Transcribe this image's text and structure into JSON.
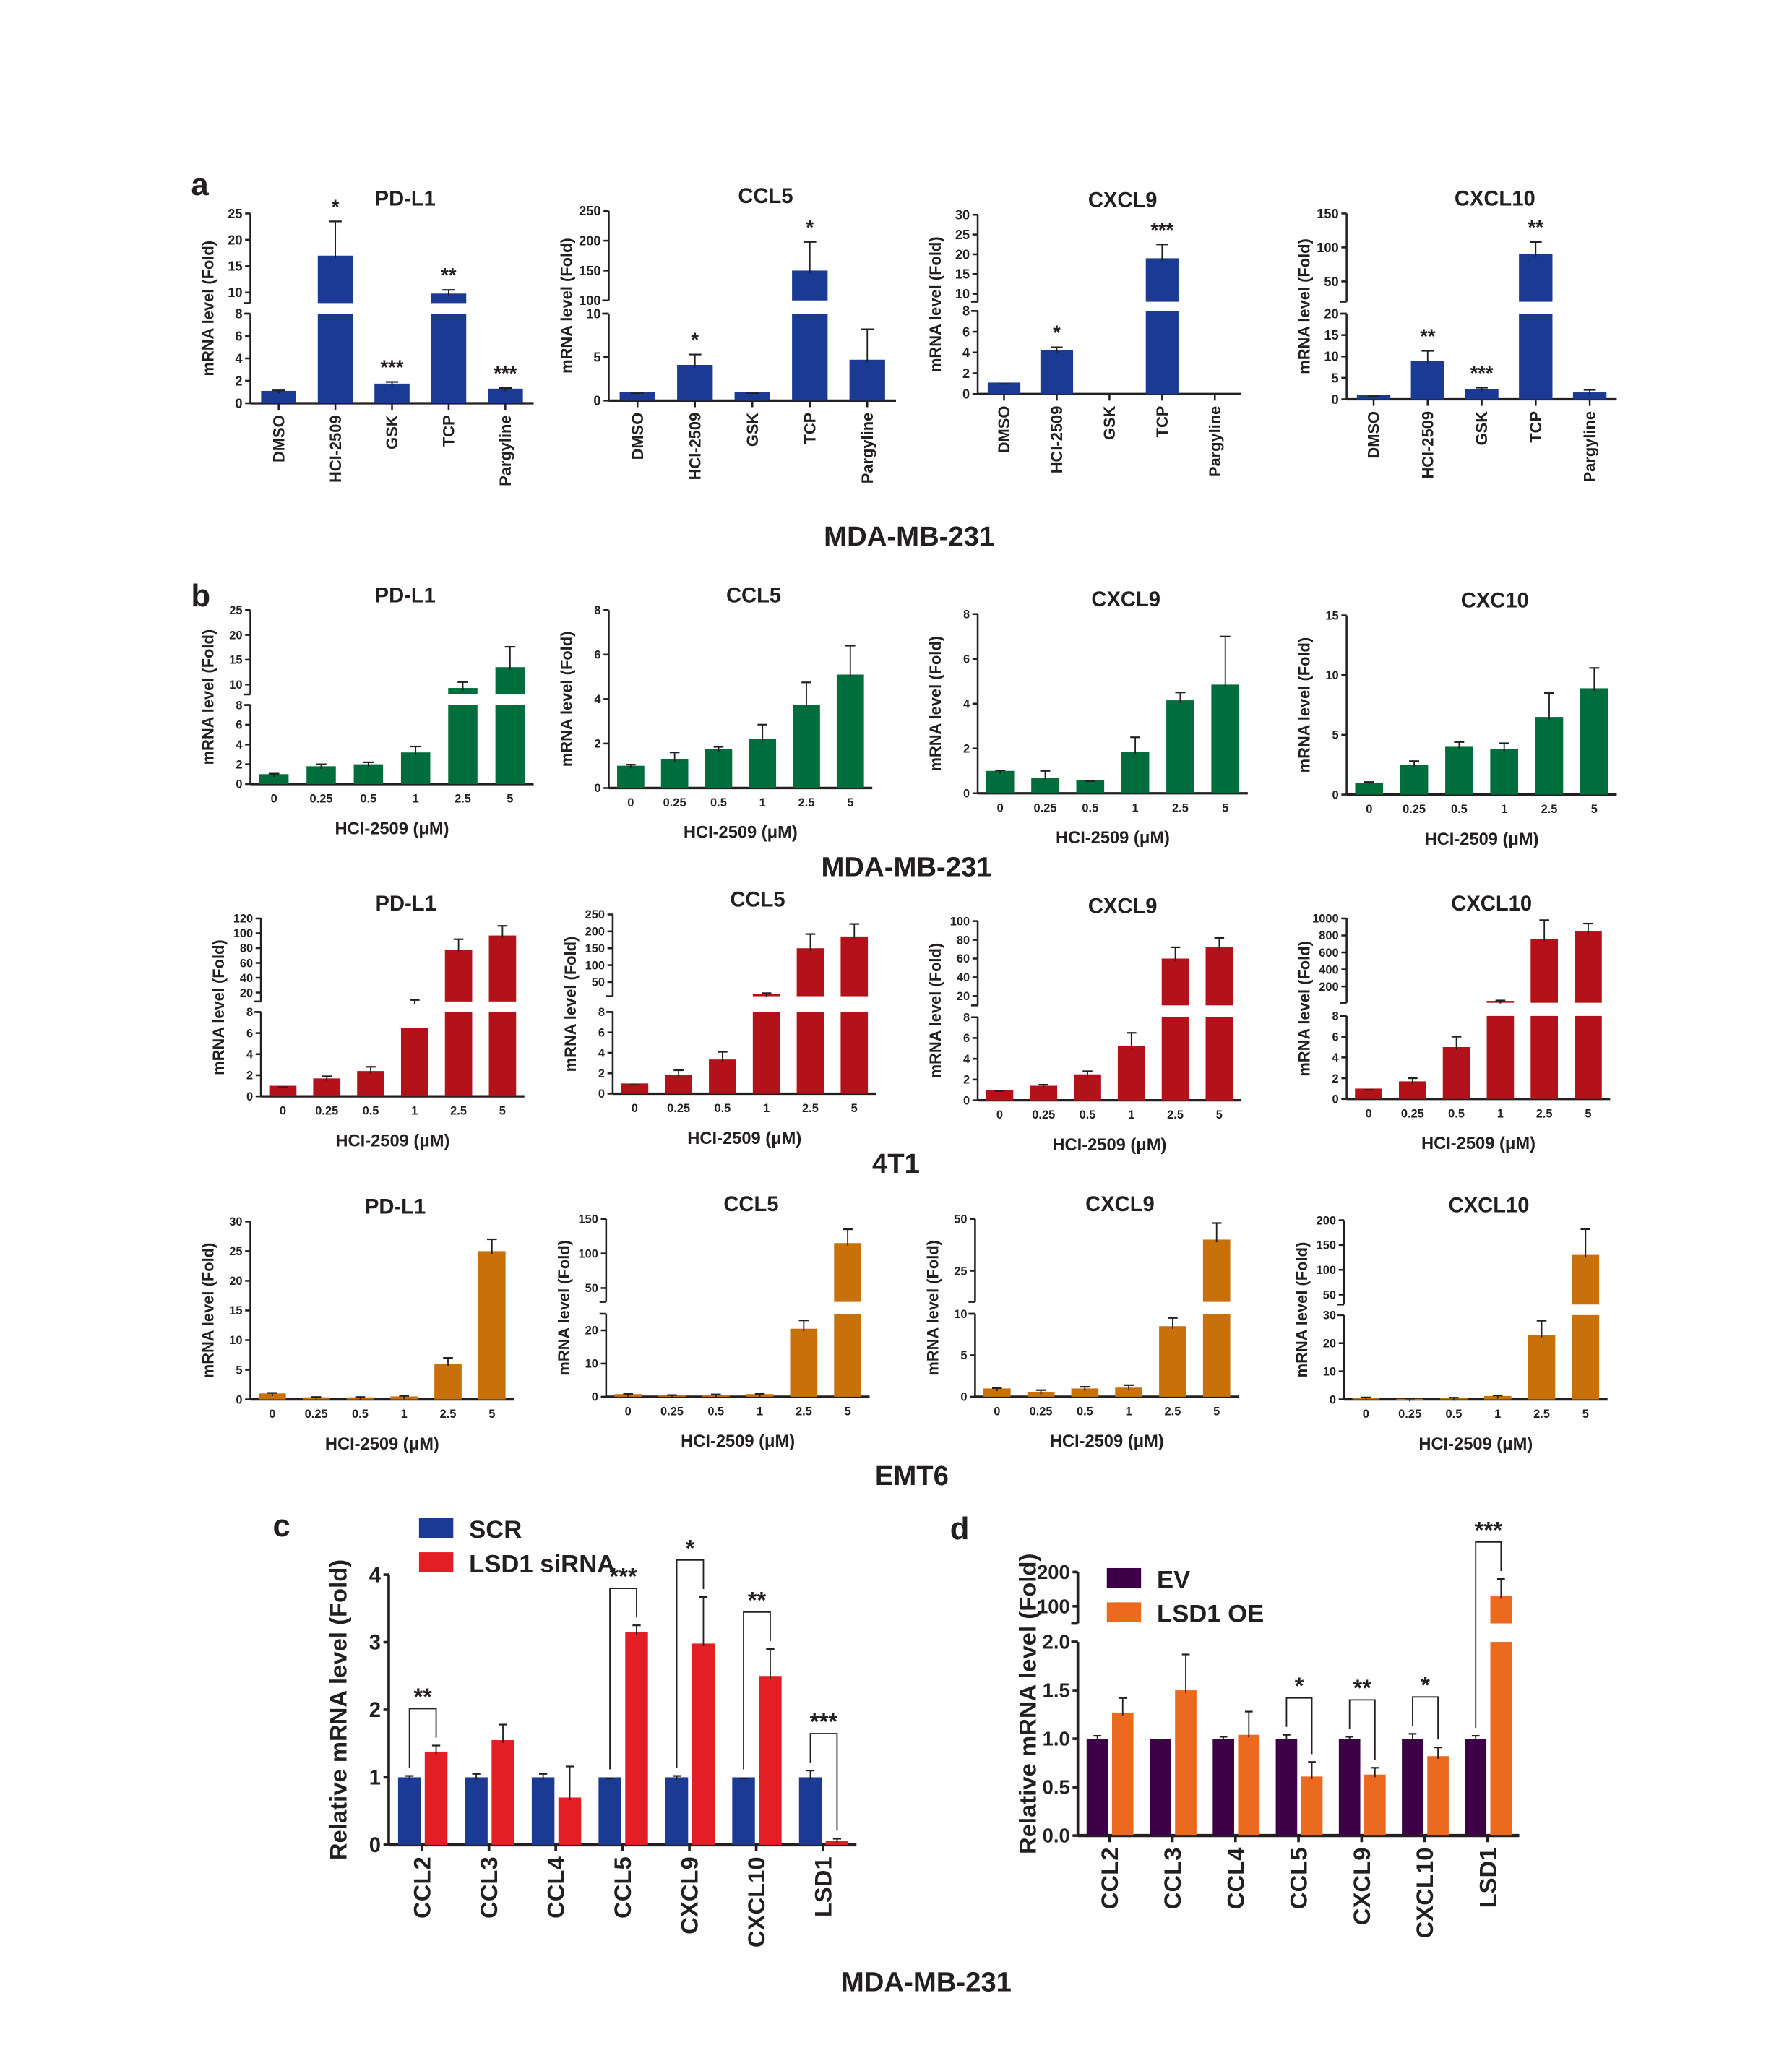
{
  "panels": {
    "a": "a",
    "b": "b",
    "c": "c",
    "d": "d"
  },
  "cell_lines": {
    "a": "MDA-MB-231",
    "b1": "MDA-MB-231",
    "b2": "4T1",
    "b3": "EMT6",
    "cd": "MDA-MB-231"
  },
  "colors": {
    "blue": "#1b3a93",
    "green": "#006e3c",
    "red": "#b3121b",
    "orange": "#c8700a",
    "scr": "#1b3a93",
    "sirna": "#e31e24",
    "ev": "#3d0047",
    "oe": "#ec6a1f"
  },
  "chart_data": [
    {
      "id": "a-pdl1",
      "type": "bar",
      "title": "PD-L1",
      "ylabel": "mRNA level (Fold)",
      "xlabel": "",
      "categories": [
        "DMSO",
        "HCI-2509",
        "GSK",
        "TCP",
        "Pargyline"
      ],
      "y_segments": [
        {
          "range": [
            0,
            8
          ],
          "ticks": [
            0,
            2,
            4,
            6,
            8
          ]
        },
        {
          "range": [
            8,
            25
          ],
          "ticks": [
            10,
            15,
            20,
            25
          ]
        }
      ],
      "series": [
        {
          "color": "#1b3a93",
          "values": [
            1.1,
            17,
            1.75,
            9.8,
            1.3
          ],
          "error_top": [
            1.15,
            23.5,
            1.9,
            10.5,
            1.35
          ]
        }
      ],
      "significance": [
        "",
        "*",
        "***",
        "**",
        "***"
      ]
    },
    {
      "id": "a-ccl5",
      "type": "bar",
      "title": "CCL5",
      "ylabel": "mRNA level (Fold)",
      "xlabel": "",
      "categories": [
        "DMSO",
        "HCI-2509",
        "GSK",
        "TCP",
        "Pargyline"
      ],
      "y_segments": [
        {
          "range": [
            0,
            10
          ],
          "ticks": [
            0,
            5,
            10
          ]
        },
        {
          "range": [
            100,
            250
          ],
          "ticks": [
            100,
            150,
            200,
            250
          ]
        }
      ],
      "series": [
        {
          "color": "#1b3a93",
          "values": [
            1,
            4.1,
            1,
            150,
            4.7
          ],
          "error_top": [
            1,
            5.3,
            1,
            198,
            8.2
          ]
        }
      ],
      "significance": [
        "",
        "*",
        "",
        "*",
        ""
      ]
    },
    {
      "id": "a-cxcl9",
      "type": "bar",
      "title": "CXCL9",
      "ylabel": "mRNA level (Fold)",
      "xlabel": "",
      "categories": [
        "DMSO",
        "HCI-2509",
        "GSK",
        "TCP",
        "Pargyline"
      ],
      "y_segments": [
        {
          "range": [
            0,
            8
          ],
          "ticks": [
            0,
            2,
            4,
            6,
            8
          ]
        },
        {
          "range": [
            8,
            30
          ],
          "ticks": [
            10,
            15,
            20,
            25,
            30
          ]
        }
      ],
      "series": [
        {
          "color": "#1b3a93",
          "values": [
            1.1,
            4.25,
            null,
            19,
            null
          ],
          "error_top": [
            1.1,
            4.5,
            null,
            22.5,
            null
          ]
        }
      ],
      "significance": [
        "",
        "*",
        "",
        "***",
        ""
      ]
    },
    {
      "id": "a-cxcl10",
      "type": "bar",
      "title": "CXCL10",
      "ylabel": "mRNA level (Fold)",
      "xlabel": "",
      "categories": [
        "DMSO",
        "HCI-2509",
        "GSK",
        "TCP",
        "Pargyline"
      ],
      "y_segments": [
        {
          "range": [
            0,
            20
          ],
          "ticks": [
            0,
            5,
            10,
            15,
            20
          ]
        },
        {
          "range": [
            20,
            150
          ],
          "ticks": [
            50,
            100,
            150
          ]
        }
      ],
      "series": [
        {
          "color": "#1b3a93",
          "values": [
            1,
            9,
            2.4,
            90,
            1.6
          ],
          "error_top": [
            1,
            11.3,
            2.7,
            108,
            2.2
          ]
        }
      ],
      "significance": [
        "",
        "**",
        "***",
        "**",
        ""
      ]
    },
    {
      "id": "b1-pdl1",
      "type": "bar",
      "title": "PD-L1",
      "ylabel": "mRNA level (Fold)",
      "xlabel": "HCI-2509 (μM)",
      "categories": [
        "0",
        "0.25",
        "0.5",
        "1",
        "2.5",
        "5"
      ],
      "y_segments": [
        {
          "range": [
            0,
            8
          ],
          "ticks": [
            0,
            2,
            4,
            6,
            8
          ]
        },
        {
          "range": [
            8,
            25
          ],
          "ticks": [
            10,
            15,
            20,
            25
          ]
        }
      ],
      "series": [
        {
          "color": "#006e3c",
          "values": [
            1,
            1.8,
            2,
            3.2,
            9.3,
            13.5
          ],
          "error_top": [
            1.05,
            2,
            2.2,
            3.8,
            10.5,
            17.6
          ]
        }
      ],
      "significance": []
    },
    {
      "id": "b1-ccl5",
      "type": "bar",
      "title": "CCL5",
      "ylabel": "mRNA level (Fold)",
      "xlabel": "HCI-2509 (μM)",
      "categories": [
        "0",
        "0.25",
        "0.5",
        "1",
        "2.5",
        "5"
      ],
      "y_segments": [
        {
          "range": [
            0,
            8
          ],
          "ticks": [
            0,
            2,
            4,
            6,
            8
          ]
        }
      ],
      "series": [
        {
          "color": "#006e3c",
          "values": [
            1,
            1.3,
            1.75,
            2.2,
            3.75,
            5.1
          ],
          "error_top": [
            1.05,
            1.6,
            1.85,
            2.85,
            4.75,
            6.4
          ]
        }
      ],
      "significance": []
    },
    {
      "id": "b1-cxcl9",
      "type": "bar",
      "title": "CXCL9",
      "ylabel": "mRNA level (Fold)",
      "xlabel": "HCI-2509 (μM)",
      "categories": [
        "0",
        "0.25",
        "0.5",
        "1",
        "2.5",
        "5"
      ],
      "y_segments": [
        {
          "range": [
            0,
            8
          ],
          "ticks": [
            0,
            2,
            4,
            6,
            8
          ]
        }
      ],
      "series": [
        {
          "color": "#006e3c",
          "values": [
            1,
            0.7,
            0.6,
            1.85,
            4.15,
            4.85
          ],
          "error_top": [
            1.02,
            1,
            0.6,
            2.5,
            4.5,
            7
          ]
        }
      ],
      "significance": []
    },
    {
      "id": "b1-cxc10",
      "type": "bar",
      "title": "CXC10",
      "ylabel": "mRNA level (Fold)",
      "xlabel": "HCI-2509 (μM)",
      "categories": [
        "0",
        "0.25",
        "0.5",
        "1",
        "2.5",
        "5"
      ],
      "y_segments": [
        {
          "range": [
            0,
            15
          ],
          "ticks": [
            0,
            5,
            10,
            15
          ]
        }
      ],
      "series": [
        {
          "color": "#006e3c",
          "values": [
            1,
            2.5,
            4,
            3.8,
            6.5,
            8.9
          ],
          "error_top": [
            1.05,
            2.8,
            4.4,
            4.3,
            8.5,
            10.6
          ]
        }
      ],
      "significance": []
    },
    {
      "id": "b2-pdl1",
      "type": "bar",
      "title": "PD-L1",
      "ylabel": "mRNA level (Fold)",
      "xlabel": "HCI-2509 (μM)",
      "categories": [
        "0",
        "0.25",
        "0.5",
        "1",
        "2.5",
        "5"
      ],
      "y_segments": [
        {
          "range": [
            0,
            8
          ],
          "ticks": [
            0,
            2,
            4,
            6,
            8
          ]
        },
        {
          "range": [
            8,
            120
          ],
          "ticks": [
            20,
            40,
            60,
            80,
            100,
            120
          ]
        }
      ],
      "series": [
        {
          "color": "#b3121b",
          "values": [
            1,
            1.7,
            2.4,
            6.5,
            78,
            97
          ],
          "error_top": [
            1,
            1.9,
            2.8,
            10,
            92,
            110
          ]
        }
      ],
      "significance": []
    },
    {
      "id": "b2-ccl5",
      "type": "bar",
      "title": "CCL5",
      "ylabel": "mRNA level (Fold)",
      "xlabel": "HCI-2509 (μM)",
      "categories": [
        "0",
        "0.25",
        "0.5",
        "1",
        "2.5",
        "5"
      ],
      "y_segments": [
        {
          "range": [
            0,
            8
          ],
          "ticks": [
            0,
            2,
            4,
            6,
            8
          ]
        },
        {
          "range": [
            8,
            250
          ],
          "ticks": [
            50,
            100,
            150,
            200,
            250
          ]
        }
      ],
      "series": [
        {
          "color": "#b3121b",
          "values": [
            1,
            1.85,
            3.35,
            14,
            150,
            185
          ],
          "error_top": [
            1,
            2.3,
            4.1,
            17,
            192,
            222
          ]
        }
      ],
      "significance": []
    },
    {
      "id": "b2-cxcl9",
      "type": "bar",
      "title": "CXCL9",
      "ylabel": "mRNA level (Fold)",
      "xlabel": "HCI-2509 (μM)",
      "categories": [
        "0",
        "0.25",
        "0.5",
        "1",
        "2.5",
        "5"
      ],
      "y_segments": [
        {
          "range": [
            0,
            8
          ],
          "ticks": [
            0,
            2,
            4,
            6,
            8
          ]
        },
        {
          "range": [
            10,
            100
          ],
          "ticks": [
            20,
            40,
            60,
            80,
            100
          ]
        }
      ],
      "series": [
        {
          "color": "#b3121b",
          "values": [
            1,
            1.4,
            2.5,
            5.2,
            60,
            72
          ],
          "error_top": [
            1,
            1.5,
            2.8,
            6.5,
            72,
            82
          ]
        }
      ],
      "significance": []
    },
    {
      "id": "b2-cxcl10",
      "type": "bar",
      "title": "CXCL10",
      "ylabel": "mRNA level (Fold)",
      "xlabel": "HCI-2509 (μM)",
      "categories": [
        "0",
        "0.25",
        "0.5",
        "1",
        "2.5",
        "5"
      ],
      "y_segments": [
        {
          "range": [
            0,
            8
          ],
          "ticks": [
            0,
            2,
            4,
            6,
            8
          ]
        },
        {
          "range": [
            8,
            1000
          ],
          "ticks": [
            200,
            400,
            600,
            800,
            1000
          ]
        }
      ],
      "series": [
        {
          "color": "#b3121b",
          "values": [
            1,
            1.7,
            5,
            30,
            760,
            850
          ],
          "error_top": [
            1,
            2,
            6,
            35,
            980,
            940
          ]
        }
      ],
      "significance": []
    },
    {
      "id": "b3-pdl1",
      "type": "bar",
      "title": "PD-L1",
      "ylabel": "mRNA level (Fold)",
      "xlabel": "HCI-2509 (μM)",
      "categories": [
        "0",
        "0.25",
        "0.5",
        "1",
        "2.5",
        "5"
      ],
      "y_segments": [
        {
          "range": [
            0,
            30
          ],
          "ticks": [
            0,
            5,
            10,
            15,
            20,
            25,
            30
          ]
        }
      ],
      "series": [
        {
          "color": "#c8700a",
          "values": [
            1,
            0.35,
            0.35,
            0.5,
            6,
            25
          ],
          "error_top": [
            1.1,
            0.4,
            0.4,
            0.6,
            7,
            27
          ]
        }
      ],
      "significance": []
    },
    {
      "id": "b3-ccl5",
      "type": "bar",
      "title": "CCL5",
      "ylabel": "mRNA level (Fold)",
      "xlabel": "HCI-2509 (μM)",
      "categories": [
        "0",
        "0.25",
        "0.5",
        "1",
        "2.5",
        "5"
      ],
      "y_segments": [
        {
          "range": [
            0,
            25
          ],
          "ticks": [
            0,
            10,
            20
          ]
        },
        {
          "range": [
            30,
            150
          ],
          "ticks": [
            50,
            100,
            150
          ]
        }
      ],
      "series": [
        {
          "color": "#c8700a",
          "values": [
            0.8,
            0.4,
            0.6,
            0.8,
            20.5,
            115
          ],
          "error_top": [
            0.9,
            0.5,
            0.7,
            0.9,
            23,
            135
          ]
        }
      ],
      "significance": []
    },
    {
      "id": "b3-cxcl9",
      "type": "bar",
      "title": "CXCL9",
      "ylabel": "mRNA level (Fold)",
      "xlabel": "HCI-2509 (μM)",
      "categories": [
        "0",
        "0.25",
        "0.5",
        "1",
        "2.5",
        "5"
      ],
      "y_segments": [
        {
          "range": [
            0,
            10
          ],
          "ticks": [
            0,
            5,
            10
          ]
        },
        {
          "range": [
            10,
            50
          ],
          "ticks": [
            25,
            50
          ]
        }
      ],
      "series": [
        {
          "color": "#c8700a",
          "values": [
            1,
            0.6,
            1,
            1.1,
            8.5,
            40
          ],
          "error_top": [
            1.05,
            0.8,
            1.2,
            1.4,
            9.5,
            48
          ]
        }
      ],
      "significance": []
    },
    {
      "id": "b3-cxcl10",
      "type": "bar",
      "title": "CXCL10",
      "ylabel": "mRNA level (Fold)",
      "xlabel": "HCI-2509 (μM)",
      "categories": [
        "0",
        "0.25",
        "0.5",
        "1",
        "2.5",
        "5"
      ],
      "y_segments": [
        {
          "range": [
            0,
            30
          ],
          "ticks": [
            0,
            10,
            20,
            30
          ]
        },
        {
          "range": [
            30,
            200
          ],
          "ticks": [
            50,
            100,
            150,
            200
          ]
        }
      ],
      "series": [
        {
          "color": "#c8700a",
          "values": [
            0.6,
            0.2,
            0.5,
            1.2,
            23,
            130
          ],
          "error_top": [
            0.7,
            0.3,
            0.6,
            1.4,
            28,
            182
          ]
        }
      ],
      "significance": []
    },
    {
      "id": "c",
      "type": "bar",
      "title": "",
      "ylabel": "Relative mRNA level (Fold)",
      "xlabel": "",
      "categories": [
        "CCL2",
        "CCL3",
        "CCL4",
        "CCL5",
        "CXCL9",
        "CXCL10",
        "LSD1"
      ],
      "y_segments": [
        {
          "range": [
            0,
            4
          ],
          "ticks": [
            0,
            1,
            2,
            3,
            4
          ]
        }
      ],
      "series": [
        {
          "name": "SCR",
          "color": "#1b3a93",
          "values": [
            1,
            1,
            1,
            1,
            1,
            1,
            1
          ],
          "error_top": [
            1.02,
            1.05,
            1.05,
            1,
            1.02,
            1,
            1.1
          ]
        },
        {
          "name": "LSD1 siRNA",
          "color": "#e31e24",
          "values": [
            1.38,
            1.55,
            0.7,
            3.15,
            2.98,
            2.5,
            0.06
          ],
          "error_top": [
            1.47,
            1.78,
            1.16,
            3.25,
            3.67,
            2.9,
            0.09
          ]
        }
      ],
      "significance": [
        "**",
        "",
        "",
        "***",
        "*",
        "**",
        "***"
      ],
      "legend": "top-left"
    },
    {
      "id": "d",
      "type": "bar",
      "title": "",
      "ylabel": "Relative mRNA level (Fold)",
      "xlabel": "",
      "categories": [
        "CCL2",
        "CCL3",
        "CCL4",
        "CCL5",
        "CXCL9",
        "CXCL10",
        "LSD1"
      ],
      "y_segments": [
        {
          "range": [
            0,
            2
          ],
          "ticks": [
            0,
            0.5,
            1,
            1.5,
            2
          ],
          "tick_labels": [
            "0.0",
            "0.5",
            "1.0",
            "1.5",
            "2.0"
          ]
        },
        {
          "range": [
            50,
            200
          ],
          "ticks": [
            100,
            200
          ]
        }
      ],
      "series": [
        {
          "name": "EV",
          "color": "#3d0047",
          "values": [
            1,
            1,
            1,
            1,
            1,
            1,
            1
          ],
          "error_top": [
            1.03,
            1,
            1.02,
            1.04,
            1.02,
            1.05,
            1.03
          ]
        },
        {
          "name": "LSD1 OE",
          "color": "#ec6a1f",
          "values": [
            1.27,
            1.5,
            1.04,
            0.61,
            0.63,
            0.82,
            130
          ],
          "error_top": [
            1.42,
            1.87,
            1.28,
            0.76,
            0.7,
            0.91,
            180
          ]
        }
      ],
      "significance": [
        "",
        "",
        "",
        "*",
        "**",
        "*",
        "***"
      ],
      "legend": "top-left"
    }
  ]
}
